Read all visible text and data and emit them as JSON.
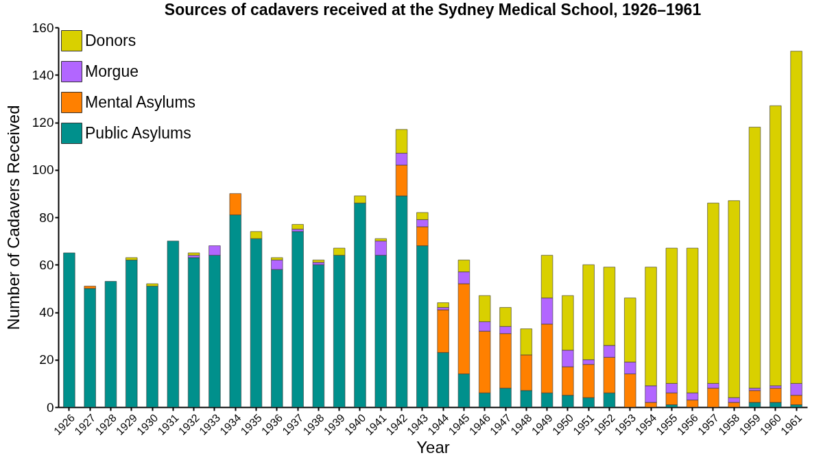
{
  "chart_data": {
    "type": "bar",
    "stacked": true,
    "title": "Sources of cadavers received at the Sydney Medical School, 1926–1961",
    "xlabel": "Year",
    "ylabel": "Number of Cadavers Received",
    "categories": [
      "1926",
      "1927",
      "1928",
      "1929",
      "1930",
      "1931",
      "1932",
      "1933",
      "1934",
      "1935",
      "1936",
      "1937",
      "1938",
      "1939",
      "1940",
      "1941",
      "1942",
      "1943",
      "1944",
      "1945",
      "1946",
      "1947",
      "1948",
      "1949",
      "1950",
      "1951",
      "1952",
      "1953",
      "1954",
      "1955",
      "1956",
      "1957",
      "1958",
      "1959",
      "1960",
      "1961"
    ],
    "series": [
      {
        "name": "Public Asylums",
        "color": "#00908c",
        "values": [
          65,
          50,
          53,
          62,
          51,
          70,
          63,
          64,
          81,
          71,
          58,
          74,
          60,
          64,
          86,
          64,
          89,
          68,
          23,
          14,
          6,
          8,
          7,
          6,
          5,
          4,
          6,
          0,
          0,
          1,
          0,
          0,
          0,
          2,
          2,
          1
        ]
      },
      {
        "name": "Mental Asylums",
        "color": "#ff8000",
        "values": [
          0,
          1,
          0,
          0,
          0,
          0,
          0,
          0,
          9,
          0,
          0,
          0,
          0,
          0,
          0,
          0,
          13,
          8,
          18,
          38,
          26,
          23,
          15,
          29,
          12,
          14,
          15,
          14,
          2,
          5,
          3,
          8,
          2,
          5,
          6,
          4
        ]
      },
      {
        "name": "Morgue",
        "color": "#b266ff",
        "values": [
          0,
          0,
          0,
          0,
          0,
          0,
          1,
          4,
          0,
          0,
          4,
          1,
          1,
          0,
          0,
          6,
          5,
          3,
          1,
          5,
          4,
          3,
          0,
          11,
          7,
          2,
          5,
          5,
          7,
          4,
          3,
          2,
          2,
          1,
          1,
          5
        ]
      },
      {
        "name": "Donors",
        "color": "#d9d000",
        "values": [
          0,
          0,
          0,
          1,
          1,
          0,
          1,
          0,
          0,
          3,
          1,
          2,
          1,
          3,
          3,
          1,
          10,
          3,
          2,
          5,
          11,
          8,
          11,
          18,
          23,
          40,
          33,
          27,
          50,
          57,
          61,
          76,
          83,
          110,
          118,
          140
        ]
      }
    ],
    "ylim": [
      0,
      160
    ],
    "yticks": [
      0,
      20,
      40,
      60,
      80,
      100,
      120,
      140,
      160
    ],
    "legend": "top left"
  }
}
